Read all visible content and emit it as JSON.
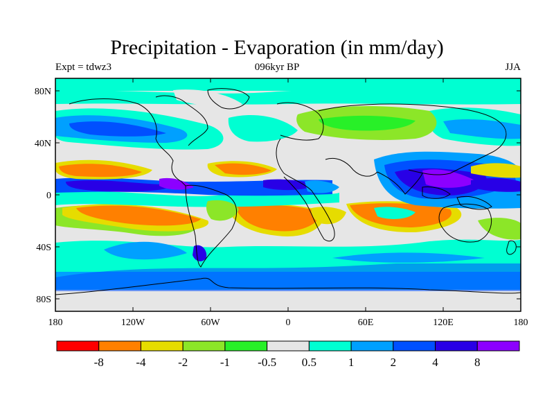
{
  "title": "Precipitation - Evaporation (in mm/day)",
  "left_label": "Expt = tdwz3",
  "center_label": "096kyr BP",
  "right_label": "JJA",
  "lat_ticks": [
    "80N",
    "40N",
    "0",
    "40S",
    "80S"
  ],
  "lon_ticks": [
    "180",
    "120W",
    "60W",
    "0",
    "60E",
    "120E",
    "180"
  ],
  "colorbar": {
    "labels": [
      "-8",
      "-4",
      "-2",
      "-1",
      "-0.5",
      "0.5",
      "1",
      "2",
      "4",
      "8"
    ],
    "colors": [
      "#ff0000",
      "#ff8000",
      "#e6dc00",
      "#8ce628",
      "#28f028",
      "#e6e6e6",
      "#00ffd2",
      "#00a0ff",
      "#0050ff",
      "#2800e6",
      "#8c00ff"
    ]
  },
  "colors": {
    "land_line": "#000000",
    "frame": "#000000"
  }
}
